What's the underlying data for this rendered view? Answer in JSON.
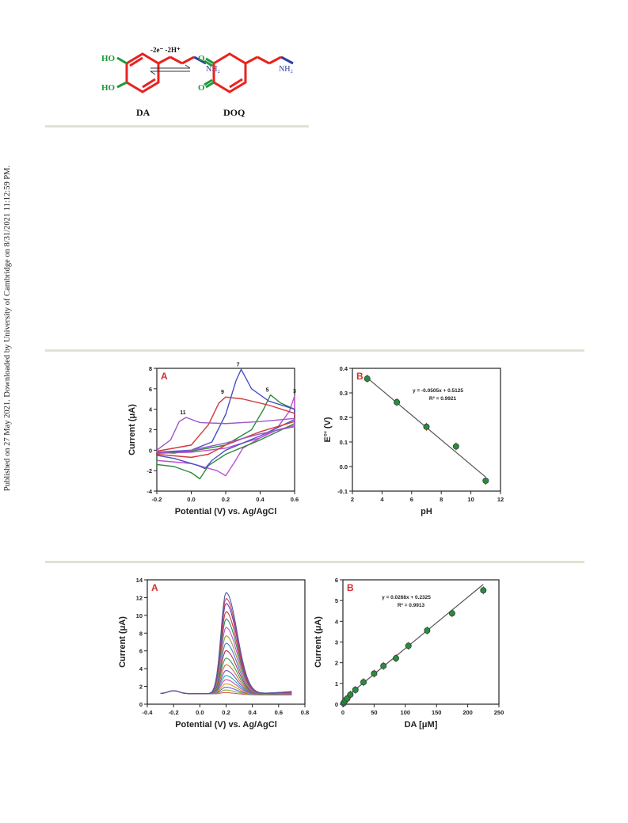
{
  "side_note": "Published on 27 May 2021. Downloaded by University of Cambridge on 8/31/2021 11:12:59 PM.",
  "scheme": {
    "left_label": "DA",
    "right_label": "DOQ",
    "arrow_label": "-2e⁻ -2H⁺",
    "groups": {
      "ho": "HO",
      "o": "O",
      "nh2": "NH₂"
    },
    "colors": {
      "ring": "#e8231f",
      "oxygen": "#1e9a3b",
      "nitrogen": "#2c3e9e"
    }
  },
  "chart_data": [
    {
      "id": "fig1A",
      "type": "line",
      "panel_label": "A",
      "xlabel": "Potential (V) vs. Ag/AgCl",
      "ylabel": "Current (μA)",
      "xlim": [
        -0.2,
        0.6
      ],
      "ylim": [
        -4,
        8
      ],
      "xticks": [
        "-0.2",
        "0.0",
        "0.2",
        "0.4",
        "0.6"
      ],
      "yticks": [
        "-4",
        "-2",
        "0",
        "2",
        "4",
        "6",
        "8"
      ],
      "series": [
        {
          "name": "3",
          "color": "#c04fd0",
          "points": [
            [
              -0.2,
              -0.3
            ],
            [
              0.0,
              -0.2
            ],
            [
              0.2,
              0.2
            ],
            [
              0.4,
              1.2
            ],
            [
              0.5,
              2.2
            ],
            [
              0.57,
              3.8
            ],
            [
              0.6,
              5.3
            ],
            [
              0.6,
              2.4
            ],
            [
              0.5,
              2.0
            ],
            [
              0.4,
              1.2
            ],
            [
              0.3,
              0.2
            ],
            [
              0.25,
              -1.2
            ],
            [
              0.2,
              -2.5
            ],
            [
              0.15,
              -2.0
            ],
            [
              0.0,
              -1.3
            ],
            [
              -0.2,
              -1.0
            ]
          ]
        },
        {
          "name": "5",
          "color": "#2e8b3a",
          "points": [
            [
              -0.2,
              -0.3
            ],
            [
              0.0,
              -0.1
            ],
            [
              0.2,
              0.5
            ],
            [
              0.35,
              2.0
            ],
            [
              0.42,
              4.0
            ],
            [
              0.46,
              5.4
            ],
            [
              0.52,
              4.6
            ],
            [
              0.6,
              4.0
            ],
            [
              0.6,
              2.6
            ],
            [
              0.4,
              1.0
            ],
            [
              0.2,
              -0.4
            ],
            [
              0.1,
              -1.5
            ],
            [
              0.05,
              -2.8
            ],
            [
              0.0,
              -2.2
            ],
            [
              -0.1,
              -1.6
            ],
            [
              -0.2,
              -1.4
            ]
          ]
        },
        {
          "name": "7",
          "color": "#4a50c8",
          "points": [
            [
              -0.2,
              -0.2
            ],
            [
              0.0,
              0.0
            ],
            [
              0.12,
              0.8
            ],
            [
              0.2,
              3.5
            ],
            [
              0.26,
              6.8
            ],
            [
              0.29,
              7.9
            ],
            [
              0.35,
              6.0
            ],
            [
              0.45,
              4.8
            ],
            [
              0.6,
              4.0
            ],
            [
              0.6,
              3.0
            ],
            [
              0.4,
              1.4
            ],
            [
              0.2,
              0.0
            ],
            [
              0.12,
              -1.0
            ],
            [
              0.08,
              -1.8
            ],
            [
              0.04,
              -1.5
            ],
            [
              -0.1,
              -0.8
            ],
            [
              -0.2,
              -0.5
            ]
          ]
        },
        {
          "name": "9",
          "color": "#d03a3a",
          "points": [
            [
              -0.2,
              -0.1
            ],
            [
              0.0,
              0.5
            ],
            [
              0.1,
              2.5
            ],
            [
              0.16,
              4.6
            ],
            [
              0.2,
              5.2
            ],
            [
              0.3,
              5.0
            ],
            [
              0.45,
              4.4
            ],
            [
              0.6,
              3.6
            ],
            [
              0.6,
              2.8
            ],
            [
              0.4,
              1.8
            ],
            [
              0.2,
              0.5
            ],
            [
              0.1,
              -0.4
            ],
            [
              0.0,
              -0.7
            ],
            [
              -0.2,
              -0.4
            ]
          ]
        },
        {
          "name": "11",
          "color": "#9b59c9",
          "points": [
            [
              -0.2,
              0.0
            ],
            [
              -0.12,
              1.0
            ],
            [
              -0.07,
              2.8
            ],
            [
              -0.03,
              3.2
            ],
            [
              0.05,
              2.7
            ],
            [
              0.2,
              2.6
            ],
            [
              0.4,
              2.8
            ],
            [
              0.6,
              3.1
            ],
            [
              0.6,
              2.3
            ],
            [
              0.4,
              1.6
            ],
            [
              0.2,
              0.7
            ],
            [
              0.0,
              0.0
            ],
            [
              -0.1,
              -0.3
            ],
            [
              -0.2,
              -0.2
            ]
          ]
        }
      ]
    },
    {
      "id": "fig1B",
      "type": "scatter",
      "panel_label": "B",
      "xlabel": "pH",
      "ylabel": "E°' (V)",
      "xlim": [
        2,
        12
      ],
      "ylim": [
        -0.1,
        0.4
      ],
      "xticks": [
        "2",
        "4",
        "6",
        "8",
        "10",
        "12"
      ],
      "yticks": [
        "-0.1",
        "0.0",
        "0.1",
        "0.2",
        "0.3",
        "0.4"
      ],
      "x": [
        3,
        5,
        7,
        9,
        11
      ],
      "y": [
        0.358,
        0.262,
        0.162,
        0.082,
        -0.058
      ],
      "fit": {
        "slope": -0.0505,
        "intercept": 0.5125
      },
      "annotations": [
        "y = -0.0505x + 0.5125",
        "R² = 0.9921"
      ],
      "marker_color": "#2e8b3a"
    },
    {
      "id": "fig2A",
      "type": "line",
      "panel_label": "A",
      "xlabel": "Potential (V) vs. Ag/AgCl",
      "ylabel": "Current (μA)",
      "xlim": [
        -0.4,
        0.8
      ],
      "ylim": [
        -1,
        14
      ],
      "xticks": [
        "-0.4",
        "-0.2",
        "0.0",
        "0.2",
        "0.4",
        "0.6",
        "0.8"
      ],
      "yticks": [
        "0",
        "2",
        "4",
        "6",
        "8",
        "10",
        "12",
        "14"
      ],
      "peak_potential": 0.2,
      "peaks": [
        0.25,
        0.55,
        0.9,
        1.3,
        1.8,
        2.3,
        2.9,
        3.6,
        4.4,
        5.3,
        6.2,
        7.1,
        8.1,
        9.1,
        10.0,
        11.0,
        11.6,
        12.3
      ],
      "colors": [
        "#e05555",
        "#8ab03a",
        "#5a6bd0",
        "#c8a020",
        "#cc44aa",
        "#2aa8a8",
        "#7a4dc0",
        "#d07030",
        "#3a9a50",
        "#b03060",
        "#4a80d0",
        "#a0a030",
        "#c04fd0",
        "#2e8b57",
        "#d03a3a",
        "#6a3aa0",
        "#d04070",
        "#4a5aa0"
      ]
    },
    {
      "id": "fig2B",
      "type": "scatter",
      "panel_label": "B",
      "xlabel": "DA [μM]",
      "ylabel": "Current (μA)",
      "xlim": [
        0,
        250
      ],
      "ylim": [
        0,
        6.5
      ],
      "xticks": [
        "0",
        "50",
        "100",
        "150",
        "200",
        "250"
      ],
      "yticks": [
        "0",
        "1",
        "2",
        "3",
        "4",
        "5",
        "6"
      ],
      "x": [
        1,
        2,
        4,
        7,
        12,
        20,
        33,
        50,
        65,
        85,
        105,
        135,
        175,
        225
      ],
      "y": [
        0.05,
        0.1,
        0.2,
        0.3,
        0.5,
        0.75,
        1.15,
        1.6,
        2.0,
        2.4,
        3.05,
        3.85,
        4.75,
        5.95
      ],
      "fit": {
        "slope": 0.0268,
        "intercept": 0.2325
      },
      "annotations": [
        "y = 0.0268x + 0.2325",
        "R² = 0.9913"
      ],
      "marker_color": "#2e8b3a"
    }
  ]
}
